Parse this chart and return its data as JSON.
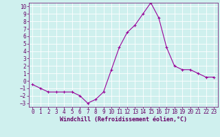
{
  "x": [
    0,
    1,
    2,
    3,
    4,
    5,
    6,
    7,
    8,
    9,
    10,
    11,
    12,
    13,
    14,
    15,
    16,
    17,
    18,
    19,
    20,
    21,
    22,
    23
  ],
  "y": [
    -0.5,
    -1.0,
    -1.5,
    -1.5,
    -1.5,
    -1.5,
    -2.0,
    -3.0,
    -2.5,
    -1.5,
    1.5,
    4.5,
    6.5,
    7.5,
    9.0,
    10.5,
    8.5,
    4.5,
    2.0,
    1.5,
    1.5,
    1.0,
    0.5,
    0.5
  ],
  "line_color": "#990099",
  "marker": "+",
  "marker_size": 3,
  "marker_linewidth": 0.8,
  "linewidth": 0.8,
  "xlabel": "Windchill (Refroidissement éolien,°C)",
  "xlabel_fontsize": 6,
  "bg_color": "#cff0ee",
  "grid_color": "#ffffff",
  "ylim": [
    -3.5,
    10.5
  ],
  "xlim": [
    -0.5,
    23.5
  ],
  "yticks": [
    -3,
    -2,
    -1,
    0,
    1,
    2,
    3,
    4,
    5,
    6,
    7,
    8,
    9,
    10
  ],
  "xticks": [
    0,
    1,
    2,
    3,
    4,
    5,
    6,
    7,
    8,
    9,
    10,
    11,
    12,
    13,
    14,
    15,
    16,
    17,
    18,
    19,
    20,
    21,
    22,
    23
  ],
  "tick_fontsize": 5.5,
  "tick_color": "#660066",
  "spine_color": "#660066"
}
